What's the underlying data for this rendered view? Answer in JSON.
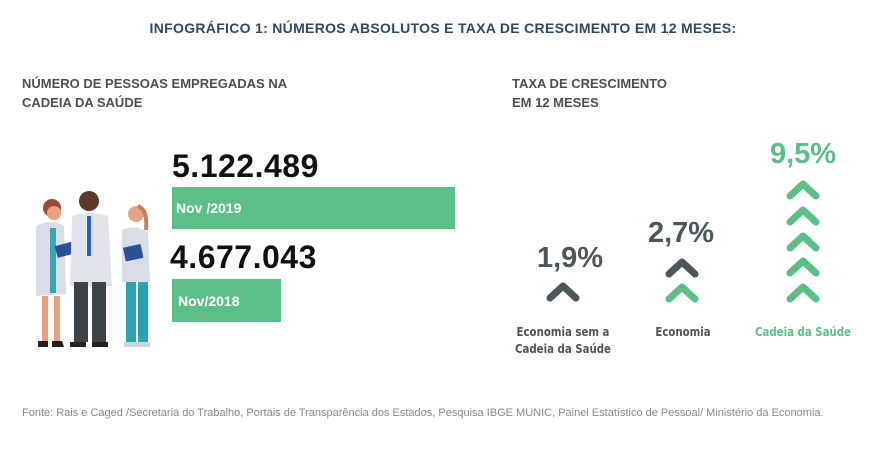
{
  "title": "INFOGRÁFICO 1: NÚMEROS ABSOLUTOS E TAXA DE CRESCIMENTO EM 12 MESES:",
  "left_header": [
    "NÚMERO DE PESSOAS EMPREGADAS NA",
    "CADEIA DA SAÚDE"
  ],
  "right_header": [
    "TAXA DE CRESCIMENTO",
    "EM 12 MESES"
  ],
  "colors": {
    "green": "#5bbf87",
    "dark": "#4c575c",
    "title": "#2e4a60"
  },
  "chart_data": [
    {
      "type": "bar",
      "title": "NÚMERO DE PESSOAS EMPREGADAS NA CADEIA DA SAÚDE",
      "orientation": "horizontal",
      "categories": [
        "Nov /2019",
        "Nov/2018"
      ],
      "values": [
        5122489,
        4677043
      ],
      "value_labels": [
        "5.122.489",
        "4.677.043"
      ]
    },
    {
      "type": "bar",
      "title": "TAXA DE CRESCIMENTO EM 12 MESES",
      "categories": [
        "Economia sem a Cadeia da Saúde",
        "Economia",
        "Cadeia da Saúde"
      ],
      "category_lines": [
        [
          "Economia sem a",
          "Cadeia da Saúde"
        ],
        [
          "Economia"
        ],
        [
          "Cadeia da Saúde"
        ]
      ],
      "values": [
        1.9,
        2.7,
        9.5
      ],
      "value_labels": [
        "1,9%",
        "2,7%",
        "9,5%"
      ],
      "unit": "%"
    }
  ],
  "footer": "Fonte: Rais e Caged /Secretaria do Trabalho, Portais de Transparência dos Estados, Pesquisa IBGE MUNIC, Painel Estatístico de Pessoal/ Ministério da Economia."
}
